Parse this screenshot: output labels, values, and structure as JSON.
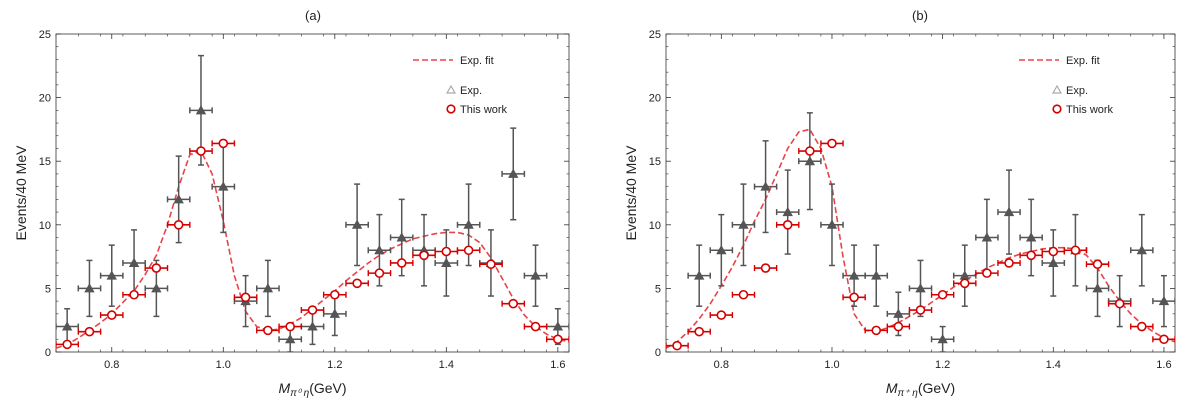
{
  "colors": {
    "exp": "#555555",
    "work": "#d40000",
    "fit": "#e8434a",
    "frame": "#333333",
    "legend_exp": "#aaaaaa"
  },
  "chart_data": [
    {
      "type": "scatter",
      "title": "(a)",
      "xlabel_main": "M",
      "xlabel_sub": "π⁰ η",
      "xlabel_unit": "(GeV)",
      "ylabel": "Events/40 MeV",
      "xlim": [
        0.7,
        1.62
      ],
      "ylim": [
        0,
        25
      ],
      "xticks": [
        0.8,
        1.0,
        1.2,
        1.4,
        1.6
      ],
      "xtick_labels": [
        "0.8",
        "1.0",
        "1.2",
        "1.4",
        "1.6"
      ],
      "yticks": [
        0,
        5,
        10,
        15,
        20,
        25
      ],
      "ytick_labels": [
        "0",
        "5",
        "10",
        "15",
        "20",
        "25"
      ],
      "legend": {
        "fit": "Exp. fit",
        "exp": "Exp.",
        "work": "This work"
      },
      "series": [
        {
          "name": "Exp.",
          "marker": "triangle",
          "x": [
            0.72,
            0.76,
            0.8,
            0.84,
            0.88,
            0.92,
            0.96,
            1.0,
            1.04,
            1.08,
            1.12,
            1.16,
            1.2,
            1.24,
            1.28,
            1.32,
            1.36,
            1.4,
            1.44,
            1.48,
            1.52,
            1.56,
            1.6
          ],
          "y": [
            2,
            5,
            6,
            7,
            5,
            12,
            19,
            13,
            4,
            5,
            1,
            2,
            3,
            10,
            8,
            9,
            8,
            7,
            10,
            7,
            14,
            6,
            2
          ],
          "err": [
            1.4,
            2.2,
            2.4,
            2.6,
            2.2,
            3.4,
            4.3,
            3.6,
            2.0,
            2.2,
            1.0,
            1.4,
            1.7,
            3.2,
            2.8,
            3.0,
            2.8,
            2.6,
            3.2,
            2.6,
            3.6,
            2.4,
            1.4
          ]
        },
        {
          "name": "This work",
          "marker": "circle",
          "x": [
            0.72,
            0.76,
            0.8,
            0.84,
            0.88,
            0.92,
            0.96,
            1.0,
            1.04,
            1.08,
            1.12,
            1.16,
            1.2,
            1.24,
            1.28,
            1.32,
            1.36,
            1.4,
            1.44,
            1.48,
            1.52,
            1.56,
            1.6
          ],
          "y": [
            0.6,
            1.6,
            2.9,
            4.5,
            6.6,
            10.0,
            15.8,
            16.4,
            4.3,
            1.7,
            2.0,
            3.3,
            4.5,
            5.4,
            6.2,
            7.0,
            7.6,
            7.9,
            8.0,
            6.9,
            3.8,
            2.0,
            1.0
          ]
        }
      ],
      "fit": {
        "name": "Exp. fit",
        "x": [
          0.7,
          0.72,
          0.74,
          0.76,
          0.78,
          0.8,
          0.82,
          0.84,
          0.86,
          0.88,
          0.9,
          0.92,
          0.94,
          0.96,
          0.98,
          1.0,
          1.02,
          1.04,
          1.06,
          1.08,
          1.1,
          1.12,
          1.14,
          1.16,
          1.18,
          1.2,
          1.22,
          1.24,
          1.26,
          1.28,
          1.3,
          1.32,
          1.34,
          1.36,
          1.38,
          1.4,
          1.42,
          1.44,
          1.46,
          1.48,
          1.5,
          1.52,
          1.54,
          1.56,
          1.58,
          1.6,
          1.62
        ],
        "y": [
          0.3,
          0.6,
          1.1,
          1.7,
          2.3,
          3.0,
          3.9,
          4.8,
          6.1,
          7.6,
          10.0,
          13.0,
          15.5,
          15.8,
          14.0,
          10.3,
          6.0,
          3.2,
          2.0,
          1.7,
          1.8,
          2.2,
          2.7,
          3.4,
          4.1,
          4.8,
          5.6,
          6.3,
          7.0,
          7.6,
          8.1,
          8.5,
          8.9,
          9.1,
          9.3,
          9.4,
          9.4,
          9.2,
          8.6,
          7.4,
          5.8,
          4.2,
          2.9,
          2.0,
          1.4,
          1.0,
          0.8
        ]
      }
    },
    {
      "type": "scatter",
      "title": "(b)",
      "xlabel_main": "M",
      "xlabel_sub": "π⁺ η",
      "xlabel_unit": "(GeV)",
      "ylabel": "Events/40 MeV",
      "xlim": [
        0.7,
        1.62
      ],
      "ylim": [
        0,
        25
      ],
      "xticks": [
        0.8,
        1.0,
        1.2,
        1.4,
        1.6
      ],
      "xtick_labels": [
        "0.8",
        "1.0",
        "1.2",
        "1.4",
        "1.6"
      ],
      "yticks": [
        0,
        5,
        10,
        15,
        20,
        25
      ],
      "ytick_labels": [
        "0",
        "5",
        "10",
        "15",
        "20",
        "25"
      ],
      "legend": {
        "fit": "Exp. fit",
        "exp": "Exp.",
        "work": "This work"
      },
      "series": [
        {
          "name": "Exp.",
          "marker": "triangle",
          "x": [
            0.76,
            0.8,
            0.84,
            0.88,
            0.92,
            0.96,
            1.0,
            1.04,
            1.08,
            1.12,
            1.16,
            1.2,
            1.24,
            1.28,
            1.32,
            1.36,
            1.4,
            1.44,
            1.48,
            1.52,
            1.56,
            1.6
          ],
          "y": [
            6,
            8,
            10,
            13,
            11,
            15,
            10,
            6,
            6,
            3,
            5,
            1,
            6,
            9,
            11,
            9,
            7,
            8,
            5,
            4,
            8,
            4
          ],
          "err": [
            2.4,
            2.8,
            3.2,
            3.6,
            3.3,
            3.8,
            3.2,
            2.4,
            2.4,
            1.7,
            2.2,
            1.0,
            2.4,
            3.0,
            3.3,
            3.0,
            2.6,
            2.8,
            2.2,
            2.0,
            2.8,
            2.0
          ]
        },
        {
          "name": "This work",
          "marker": "circle",
          "x": [
            0.72,
            0.76,
            0.8,
            0.84,
            0.88,
            0.92,
            0.96,
            1.0,
            1.04,
            1.08,
            1.12,
            1.16,
            1.2,
            1.24,
            1.28,
            1.32,
            1.36,
            1.4,
            1.44,
            1.48,
            1.52,
            1.56,
            1.6
          ],
          "y": [
            0.5,
            1.6,
            2.9,
            4.5,
            6.6,
            10.0,
            15.8,
            16.4,
            4.3,
            1.7,
            2.0,
            3.3,
            4.5,
            5.4,
            6.2,
            7.0,
            7.6,
            7.9,
            8.0,
            6.9,
            3.8,
            2.0,
            1.0
          ]
        }
      ],
      "fit": {
        "name": "Exp. fit",
        "x": [
          0.7,
          0.72,
          0.74,
          0.76,
          0.78,
          0.8,
          0.82,
          0.84,
          0.86,
          0.88,
          0.9,
          0.92,
          0.94,
          0.96,
          0.98,
          1.0,
          1.02,
          1.04,
          1.06,
          1.08,
          1.1,
          1.12,
          1.14,
          1.16,
          1.18,
          1.2,
          1.22,
          1.24,
          1.26,
          1.28,
          1.3,
          1.32,
          1.34,
          1.36,
          1.38,
          1.4,
          1.42,
          1.44,
          1.46,
          1.48,
          1.5,
          1.52,
          1.54,
          1.56,
          1.58,
          1.6,
          1.62
        ],
        "y": [
          0.3,
          0.8,
          1.6,
          2.6,
          3.8,
          5.2,
          6.7,
          8.4,
          10.3,
          12.0,
          14.0,
          16.0,
          17.3,
          17.5,
          16.0,
          13.0,
          7.5,
          3.0,
          1.7,
          1.6,
          1.9,
          2.3,
          2.8,
          3.3,
          3.9,
          4.5,
          5.1,
          5.6,
          6.1,
          6.6,
          7.0,
          7.4,
          7.7,
          7.9,
          8.1,
          8.2,
          8.2,
          8.1,
          7.6,
          6.6,
          5.2,
          4.0,
          3.0,
          2.2,
          1.6,
          1.1,
          0.8
        ]
      }
    }
  ]
}
